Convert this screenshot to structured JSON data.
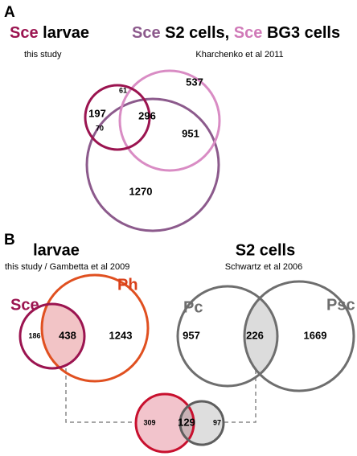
{
  "panel_a": {
    "label": "A",
    "left_title": {
      "part1": "Sce",
      "part2": "larvae"
    },
    "left_source": "this study",
    "right_title": {
      "part1": "Sce",
      "part2": "S2 cells,",
      "part3": "Sce",
      "part4": "BG3 cells"
    },
    "right_source": "Kharchenko et al 2011",
    "counts": [
      "537",
      "197",
      "61",
      "296",
      "951",
      "70",
      "1270"
    ]
  },
  "panel_b": {
    "label": "B",
    "left_title": "larvae",
    "left_source": "this study / Gambetta et al 2009",
    "right_title": "S2 cells",
    "right_source": "Schwartz et al 2006",
    "left_venn": {
      "set1": "Sce",
      "set2": "Ph",
      "counts": [
        "186",
        "438",
        "1243"
      ]
    },
    "right_venn": {
      "set1": "Pc",
      "set2": "Psc",
      "counts": [
        "957",
        "226",
        "1669"
      ]
    },
    "bottom_venn": {
      "counts": [
        "309",
        "129",
        "97"
      ]
    }
  }
}
